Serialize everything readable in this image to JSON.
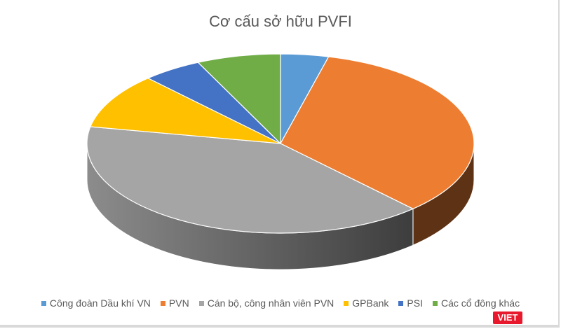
{
  "chart_data": {
    "type": "pie",
    "title": "Cơ cấu sở hữu PVFI",
    "style": "3d",
    "legend_position": "bottom",
    "categories": [
      "Công đoàn Dầu khí VN",
      "PVN",
      "Cán bộ, công nhân viên PVN",
      "GPBank",
      "PSI",
      "Các cổ đông khác"
    ],
    "values": [
      4,
      34,
      40,
      10,
      5,
      7
    ],
    "colors": [
      "#5b9bd5",
      "#ed7d31",
      "#a5a5a5",
      "#ffc000",
      "#4472c4",
      "#70ad47"
    ]
  },
  "watermark": "VIET"
}
